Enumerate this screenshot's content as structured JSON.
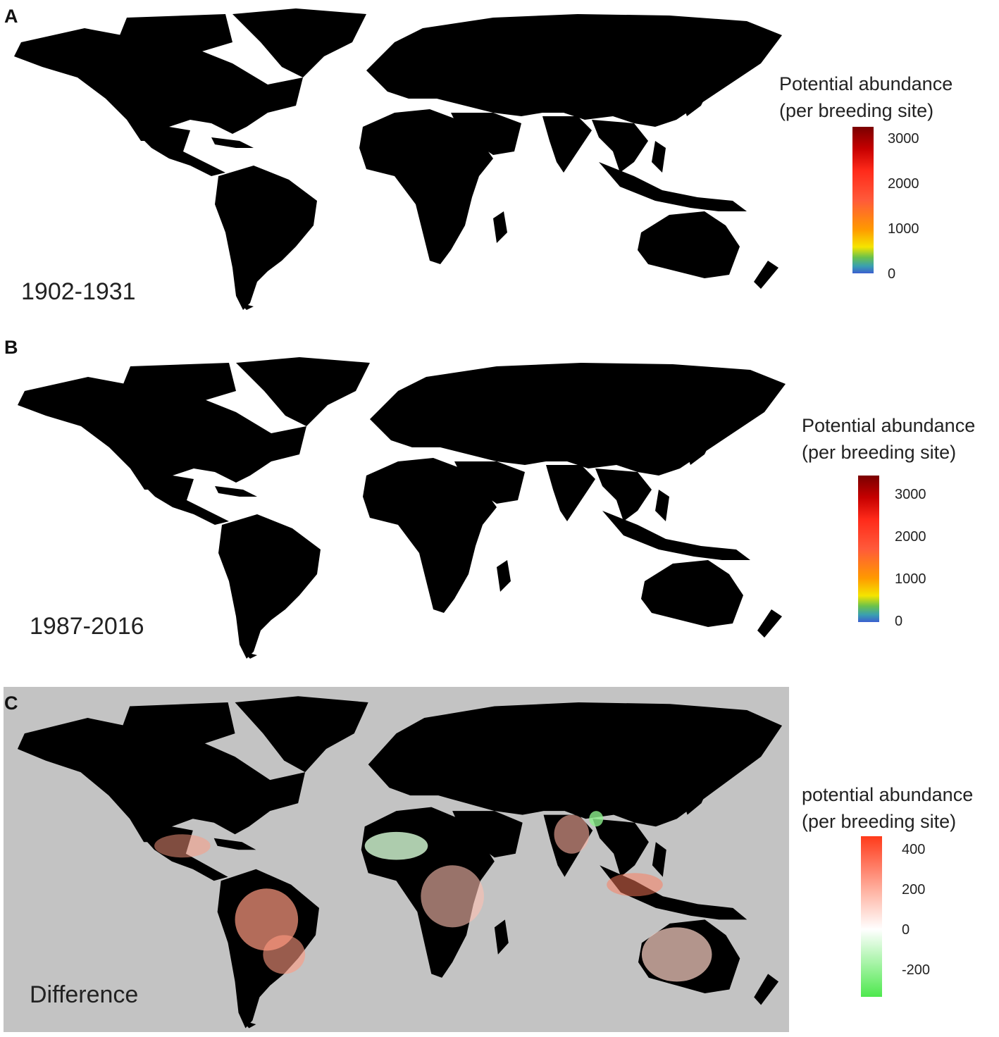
{
  "panels": [
    {
      "letter": "A",
      "period": "1902-1931",
      "legend": {
        "title_line1": "Potential abundance",
        "title_line2": "(per breeding site)",
        "ticks": [
          "3000",
          "2000",
          "1000",
          "0"
        ]
      }
    },
    {
      "letter": "B",
      "period": "1987-2016",
      "legend": {
        "title_line1": "Potential abundance",
        "title_line2": "(per breeding site)",
        "ticks": [
          "3000",
          "2000",
          "1000",
          "0"
        ]
      }
    },
    {
      "letter": "C",
      "period": "Difference",
      "legend": {
        "title_line1": "potential abundance",
        "title_line2": "(per breeding site)",
        "ticks": [
          "400",
          "200",
          "0",
          "-200"
        ]
      }
    }
  ],
  "colors": {
    "abundance_scale": [
      "#3b5fd0",
      "#3aa0b0",
      "#6cc24a",
      "#f5e400",
      "#ff9900",
      "#ff5a3a",
      "#ff2a1a",
      "#c60000",
      "#7a0000"
    ],
    "land_low": "#3b5fd0",
    "difference_scale": [
      "#ff3a1a",
      "#ff9a80",
      "#ffffff",
      "#4ee84e"
    ],
    "difference_background": "#c3c3c3",
    "difference_land": "#ffffff"
  }
}
